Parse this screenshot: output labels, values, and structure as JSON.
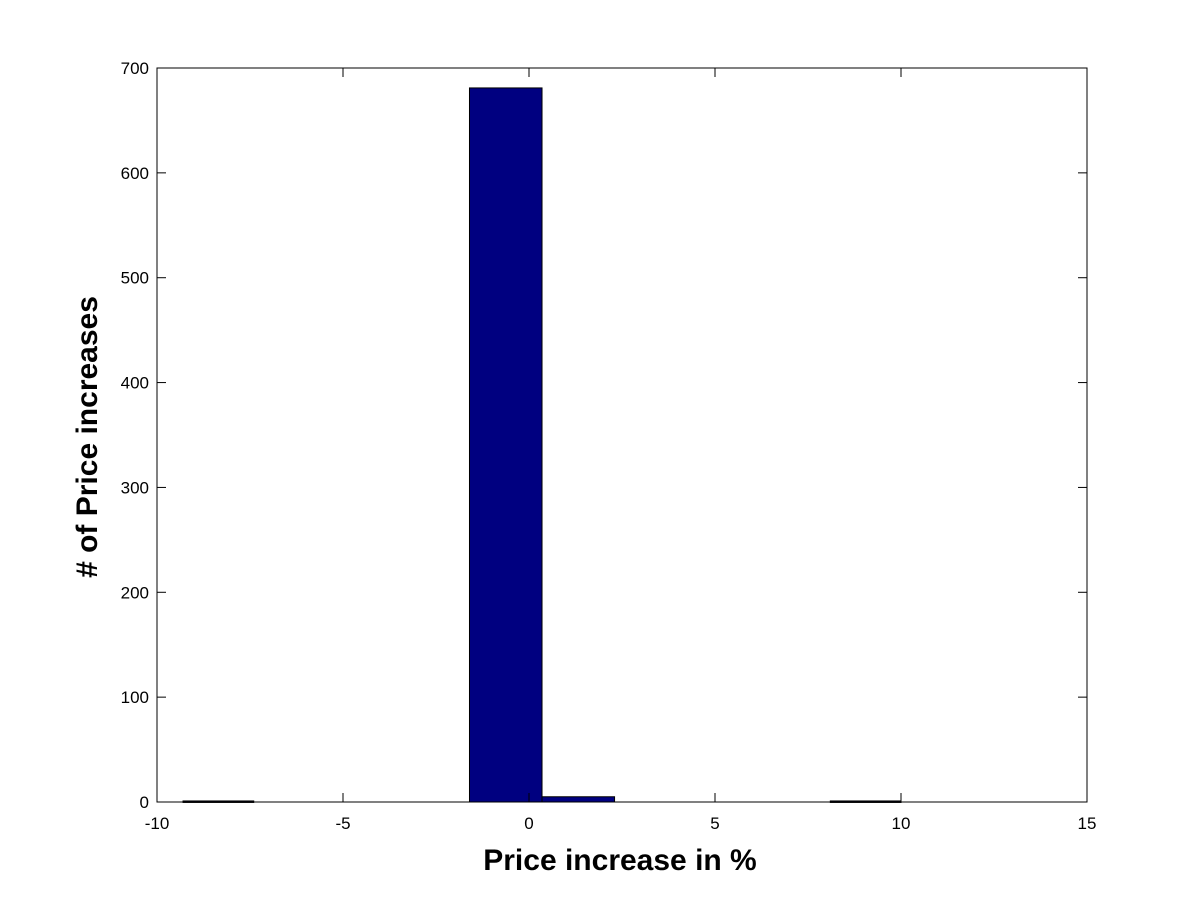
{
  "chart_data": {
    "type": "bar",
    "title": "",
    "xlabel": "Price increase in %",
    "ylabel": "# of Price increases",
    "xlim": [
      -10,
      15
    ],
    "ylim": [
      0,
      700
    ],
    "x_ticks": [
      -10,
      -5,
      0,
      5,
      10,
      15
    ],
    "y_ticks": [
      0,
      100,
      200,
      300,
      400,
      500,
      600,
      700
    ],
    "x_tick_labels": [
      "-10",
      "-5",
      "0",
      "5",
      "10",
      "15"
    ],
    "y_tick_labels": [
      "0",
      "100",
      "200",
      "300",
      "400",
      "500",
      "600",
      "700"
    ],
    "bins": [
      {
        "x_start": -9.3,
        "x_end": -7.4,
        "value": 1
      },
      {
        "x_start": -7.4,
        "x_end": -5.5,
        "value": 0
      },
      {
        "x_start": -5.5,
        "x_end": -3.5,
        "value": 0
      },
      {
        "x_start": -3.5,
        "x_end": -1.6,
        "value": 0
      },
      {
        "x_start": -1.6,
        "x_end": 0.35,
        "value": 681
      },
      {
        "x_start": 0.35,
        "x_end": 2.3,
        "value": 5
      },
      {
        "x_start": 2.3,
        "x_end": 4.2,
        "value": 0
      },
      {
        "x_start": 4.2,
        "x_end": 6.1,
        "value": 0
      },
      {
        "x_start": 6.1,
        "x_end": 8.1,
        "value": 0
      },
      {
        "x_start": 8.1,
        "x_end": 10.0,
        "value": 1
      }
    ],
    "bar_color": "#000080",
    "bar_edge_color": "#000000",
    "grid": false,
    "legend": "none"
  }
}
